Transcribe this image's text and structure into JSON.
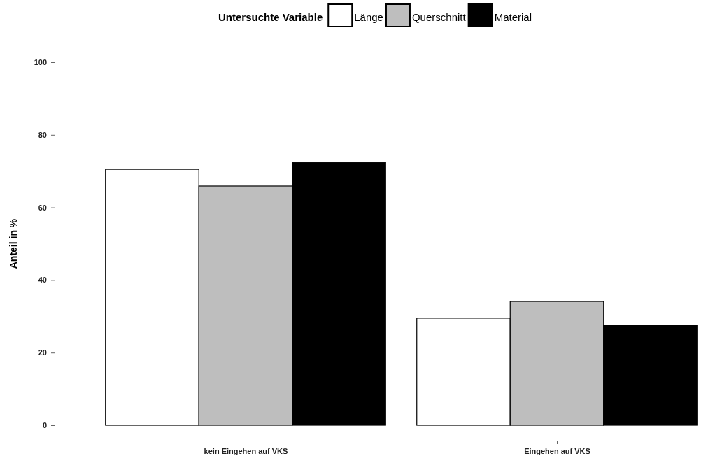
{
  "chart_data": {
    "type": "bar",
    "ylabel": "Anteil in %",
    "legend_title": "Untersuchte Variable",
    "categories": [
      "kein Eingehen auf VKS",
      "Eingehen auf VKS"
    ],
    "series": [
      {
        "name": "Länge",
        "color": "#ffffff",
        "values": [
          70.5,
          29.5
        ]
      },
      {
        "name": "Querschnitt",
        "color": "#bebebe",
        "values": [
          65.9,
          34.1
        ]
      },
      {
        "name": "Material",
        "color": "#000000",
        "values": [
          72.4,
          27.6
        ]
      }
    ],
    "ylim": [
      0,
      100
    ],
    "yticks": [
      0,
      20,
      40,
      60,
      80,
      100
    ],
    "grid": false,
    "legend": "top"
  }
}
